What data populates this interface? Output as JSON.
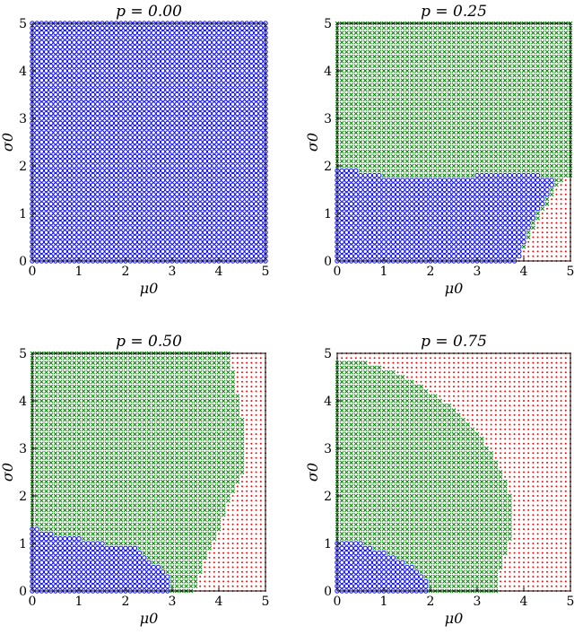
{
  "chart_data": [
    {
      "type": "scatter",
      "title": "p = 0.00",
      "xlabel": "μ0",
      "ylabel": "σ0",
      "xlim": [
        0,
        5
      ],
      "ylim": [
        0,
        5
      ],
      "xticks": [
        "0",
        "1",
        "2",
        "3",
        "4",
        "5"
      ],
      "yticks": [
        "0",
        "1",
        "2",
        "3",
        "4",
        "5"
      ],
      "series": [
        {
          "marker": "o",
          "color": "#0000ff",
          "region": "full"
        }
      ]
    },
    {
      "type": "scatter",
      "title": "p = 0.25",
      "xlabel": "μ0",
      "ylabel": "σ0",
      "xlim": [
        0,
        5
      ],
      "ylim": [
        0,
        5
      ],
      "xticks": [
        "0",
        "1",
        "2",
        "3",
        "4",
        "5"
      ],
      "yticks": [
        "0",
        "1",
        "2",
        "3",
        "4",
        "5"
      ],
      "series": [
        {
          "marker": "·",
          "color": "#ff0000",
          "region": "background"
        },
        {
          "marker": "x",
          "color": "#008000",
          "boundary": [
            [
              0,
              5
            ],
            [
              5,
              5
            ],
            [
              5,
              1.8
            ],
            [
              4.8,
              1.7
            ],
            [
              4.4,
              1.0
            ],
            [
              3.9,
              0
            ],
            [
              0,
              0
            ]
          ]
        },
        {
          "marker": "o",
          "color": "#0000ff",
          "boundary": [
            [
              0,
              0
            ],
            [
              0,
              2.0
            ],
            [
              0.5,
              1.9
            ],
            [
              1.0,
              1.8
            ],
            [
              2.0,
              1.75
            ],
            [
              3.0,
              1.8
            ],
            [
              3.5,
              1.9
            ],
            [
              4.2,
              1.85
            ],
            [
              4.7,
              1.7
            ],
            [
              4.5,
              1.3
            ],
            [
              4.3,
              1.0
            ],
            [
              4.1,
              0.6
            ],
            [
              3.9,
              0
            ]
          ]
        }
      ]
    },
    {
      "type": "scatter",
      "title": "p = 0.50",
      "xlabel": "μ0",
      "ylabel": "σ0",
      "xlim": [
        0,
        5
      ],
      "ylim": [
        0,
        5
      ],
      "xticks": [
        "0",
        "1",
        "2",
        "3",
        "4",
        "5"
      ],
      "yticks": [
        "0",
        "1",
        "2",
        "3",
        "4",
        "5"
      ],
      "series": [
        {
          "marker": "·",
          "color": "#ff0000",
          "region": "background"
        },
        {
          "marker": "x",
          "color": "#008000",
          "boundary": [
            [
              0,
              5
            ],
            [
              4.2,
              5
            ],
            [
              4.4,
              4.2
            ],
            [
              4.55,
              3.4
            ],
            [
              4.5,
              2.4
            ],
            [
              4.2,
              1.8
            ],
            [
              4.0,
              1.2
            ],
            [
              3.7,
              0.6
            ],
            [
              3.5,
              0
            ],
            [
              0,
              0
            ]
          ]
        },
        {
          "marker": "o",
          "color": "#0000ff",
          "boundary": [
            [
              0,
              0
            ],
            [
              0,
              1.35
            ],
            [
              0.5,
              1.2
            ],
            [
              1.0,
              1.1
            ],
            [
              1.5,
              1.0
            ],
            [
              2.2,
              0.9
            ],
            [
              2.6,
              0.6
            ],
            [
              2.9,
              0.35
            ],
            [
              3.0,
              0
            ]
          ]
        }
      ]
    },
    {
      "type": "scatter",
      "title": "p = 0.75",
      "xlabel": "μ0",
      "ylabel": "σ0",
      "xlim": [
        0,
        5
      ],
      "ylim": [
        0,
        5
      ],
      "xticks": [
        "0",
        "1",
        "2",
        "3",
        "4",
        "5"
      ],
      "yticks": [
        "0",
        "1",
        "2",
        "3",
        "4",
        "5"
      ],
      "series": [
        {
          "marker": "·",
          "color": "#ff0000",
          "region": "background"
        },
        {
          "marker": "x",
          "color": "#008000",
          "boundary": [
            [
              0,
              4.8
            ],
            [
              0.6,
              4.8
            ],
            [
              1.3,
              4.6
            ],
            [
              2.0,
              4.2
            ],
            [
              2.7,
              3.7
            ],
            [
              3.2,
              3.1
            ],
            [
              3.6,
              2.4
            ],
            [
              3.8,
              1.6
            ],
            [
              3.7,
              1.0
            ],
            [
              3.5,
              0.4
            ],
            [
              3.45,
              0
            ],
            [
              0,
              0
            ]
          ]
        },
        {
          "marker": "o",
          "color": "#0000ff",
          "boundary": [
            [
              0,
              0
            ],
            [
              0,
              1.0
            ],
            [
              0.5,
              1.0
            ],
            [
              1.0,
              0.8
            ],
            [
              1.5,
              0.6
            ],
            [
              1.8,
              0.35
            ],
            [
              2.0,
              0.1
            ],
            [
              2.0,
              0
            ]
          ]
        }
      ]
    }
  ]
}
